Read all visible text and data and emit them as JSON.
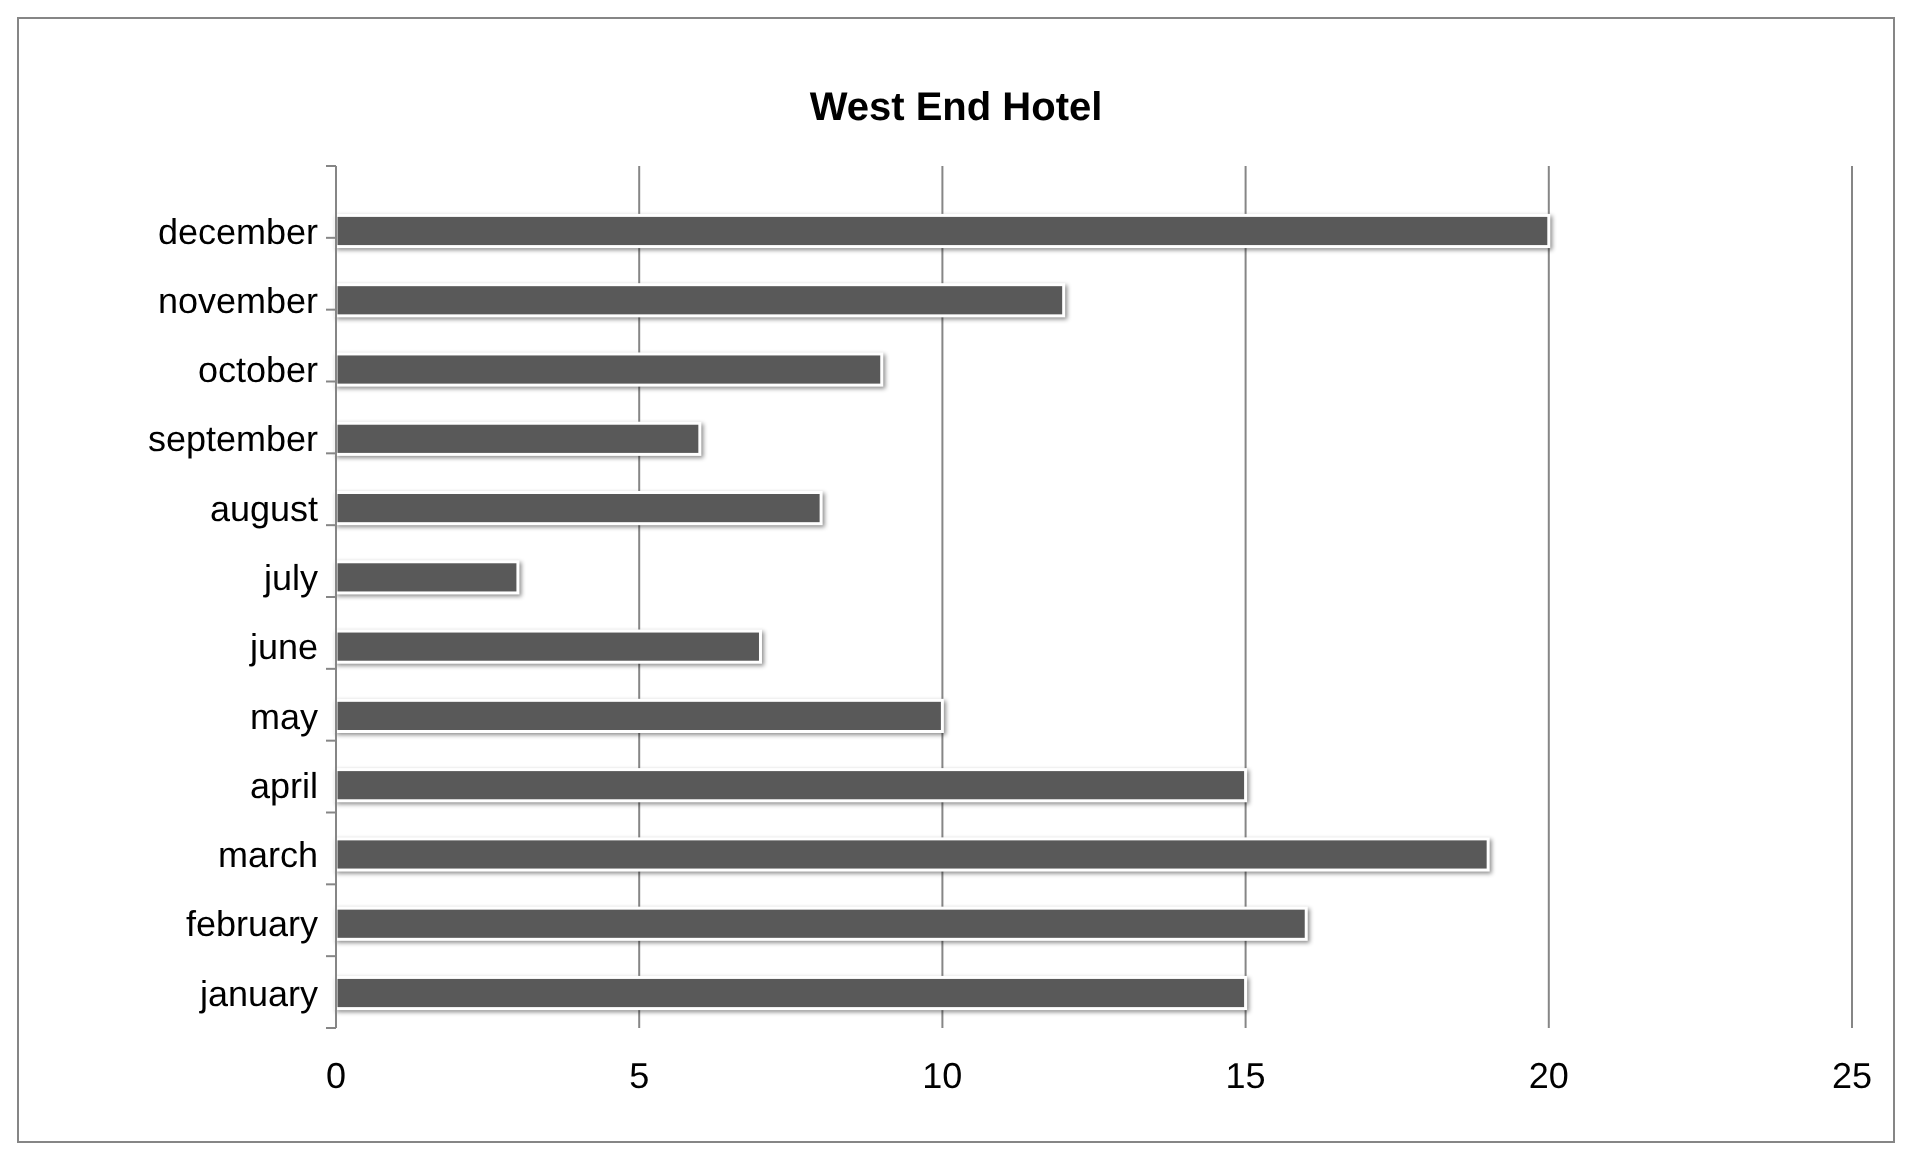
{
  "chart_data": {
    "type": "bar",
    "title": "West End Hotel",
    "orientation": "horizontal",
    "categories": [
      "december",
      "november",
      "october",
      "september",
      "august",
      "july",
      "june",
      "may",
      "april",
      "march",
      "february",
      "january"
    ],
    "values": [
      20,
      12,
      9,
      6,
      8,
      3,
      7,
      10,
      15,
      19,
      16,
      15
    ],
    "color": "#595959",
    "xlim": [
      0,
      25
    ],
    "xticks": [
      0,
      5,
      10,
      15,
      20,
      25
    ],
    "grid": "x"
  }
}
